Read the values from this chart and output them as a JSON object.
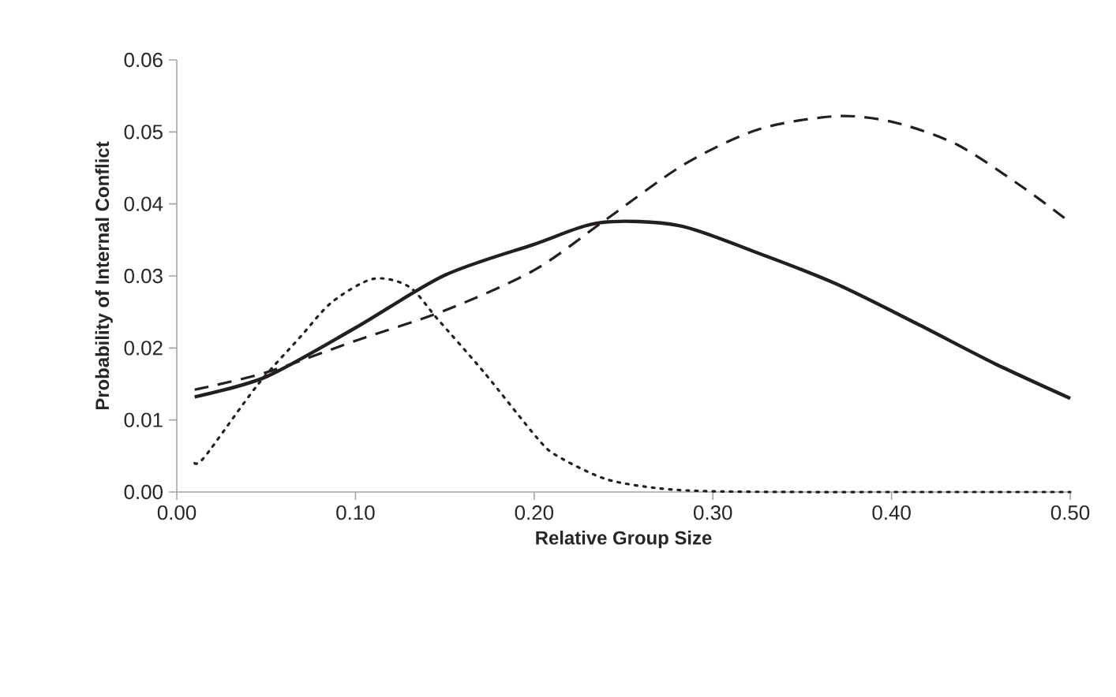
{
  "chart_data": {
    "type": "line",
    "xlabel": "Relative Group Size",
    "ylabel": "Probability of Internal Conflict",
    "xlim": [
      0,
      0.5
    ],
    "ylim": [
      0,
      0.06
    ],
    "xticks": [
      {
        "value": 0,
        "label": "0.00"
      },
      {
        "value": 0.1,
        "label": "0.10"
      },
      {
        "value": 0.2,
        "label": "0.20"
      },
      {
        "value": 0.3,
        "label": "0.30"
      },
      {
        "value": 0.4,
        "label": "0.40"
      },
      {
        "value": 0.5,
        "label": "0.50"
      }
    ],
    "yticks": [
      {
        "value": 0,
        "label": "0.00"
      },
      {
        "value": 0.01,
        "label": "0.01"
      },
      {
        "value": 0.02,
        "label": "0.02"
      },
      {
        "value": 0.03,
        "label": "0.03"
      },
      {
        "value": 0.04,
        "label": "0.04"
      },
      {
        "value": 0.05,
        "label": "0.05"
      },
      {
        "value": 0.06,
        "label": "0.06"
      }
    ],
    "grid": false,
    "marker": "none",
    "series": [
      {
        "color": "#231f20",
        "line_style": "solid",
        "x": [
          0.01,
          0.05,
          0.1,
          0.15,
          0.2,
          0.237,
          0.281,
          0.325,
          0.369,
          0.414,
          0.458,
          0.5
        ],
        "values": [
          0.0132,
          0.016,
          0.0228,
          0.0301,
          0.0344,
          0.0374,
          0.037,
          0.0332,
          0.0289,
          0.0234,
          0.0178,
          0.013
        ]
      },
      {
        "color": "#231f20",
        "line_style": "dashed",
        "x": [
          0.01,
          0.05,
          0.1,
          0.15,
          0.2,
          0.24,
          0.284,
          0.326,
          0.37,
          0.402,
          0.437,
          0.473,
          0.497
        ],
        "values": [
          0.0142,
          0.0166,
          0.021,
          0.0252,
          0.0308,
          0.0378,
          0.0455,
          0.0504,
          0.0522,
          0.0513,
          0.0482,
          0.0424,
          0.038
        ]
      },
      {
        "color": "#231f20",
        "line_style": "dotted",
        "x": [
          0.01,
          0.016,
          0.045,
          0.069,
          0.087,
          0.11,
          0.13,
          0.146,
          0.172,
          0.202,
          0.213,
          0.24,
          0.27,
          0.3,
          0.35,
          0.4,
          0.45,
          0.5
        ],
        "values": [
          0.004,
          0.005,
          0.0148,
          0.0215,
          0.0264,
          0.0296,
          0.0285,
          0.024,
          0.0166,
          0.0074,
          0.005,
          0.0018,
          0.0005,
          0.0001,
          0,
          0,
          0,
          0
        ]
      }
    ]
  }
}
